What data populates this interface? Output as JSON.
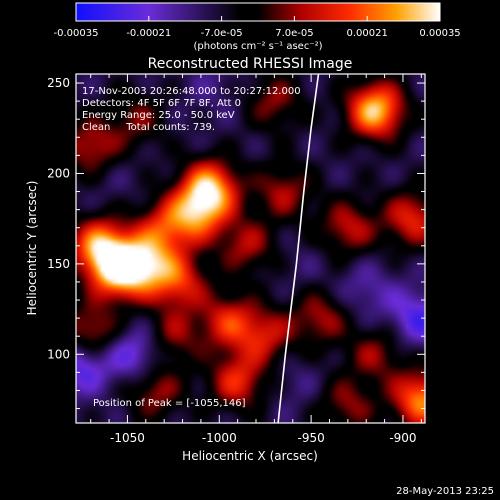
{
  "colorbar": {
    "tick_labels": [
      "-0.00035",
      "-0.00021",
      "-7.0e-05",
      "7.0e-05",
      "0.00021",
      "0.00035"
    ],
    "tick_values": [
      -0.00035,
      -0.00021,
      -7e-05,
      7e-05,
      0.00021,
      0.00035
    ],
    "units_label": "(photons cm⁻² s⁻¹ asec⁻²)",
    "range": [
      -0.00035,
      0.00035
    ]
  },
  "annotation": {
    "time_range": "17-Nov-2003 20:26:48.000 to 20:27:12.000",
    "detectors": "Detectors: 4F 5F 6F 7F 8F, Att 0",
    "energy_range": "Energy Range: 25.0 - 50.0 keV",
    "method_counts": "Clean     Total counts: 739.",
    "peak_position": "Position of Peak = [-1055,146]"
  },
  "footer": {
    "timestamp": "28-May-2013 23:25"
  },
  "chart_data": {
    "type": "heatmap",
    "title": "Reconstructed RHESSI Image",
    "xlabel": "Heliocentric X (arcsec)",
    "ylabel": "Heliocentric Y (arcsec)",
    "xlim": [
      -1078,
      -888
    ],
    "ylim": [
      62,
      255
    ],
    "x_ticks": [
      -1050,
      -1000,
      -950,
      -900
    ],
    "x_tick_labels": [
      "-1050",
      "-1000",
      "-950",
      "-900"
    ],
    "y_ticks": [
      100,
      150,
      200,
      250
    ],
    "y_tick_labels": [
      "100",
      "150",
      "200",
      "250"
    ],
    "grid": false,
    "colormap": "blue-purple-black-red-yellow-white",
    "peak": {
      "x": -1055,
      "y": 146
    },
    "limb_curve": {
      "x": [
        -968,
        -964,
        -958,
        -954,
        -950,
        -946
      ],
      "y": [
        62,
        100,
        150,
        190,
        225,
        255
      ]
    },
    "blobs": [
      {
        "x": -1055,
        "y": 146,
        "v": 0.00032
      },
      {
        "x": -1065,
        "y": 160,
        "v": 0.00028
      },
      {
        "x": -1040,
        "y": 150,
        "v": 0.00024
      },
      {
        "x": -1005,
        "y": 192,
        "v": 0.0003
      },
      {
        "x": -1012,
        "y": 178,
        "v": 0.00022
      },
      {
        "x": -1030,
        "y": 170,
        "v": 0.00016
      },
      {
        "x": -1022,
        "y": 140,
        "v": 0.00018
      },
      {
        "x": -995,
        "y": 118,
        "v": 0.00017
      },
      {
        "x": -985,
        "y": 160,
        "v": 0.00012
      },
      {
        "x": -965,
        "y": 190,
        "v": 0.00012
      },
      {
        "x": -1070,
        "y": 215,
        "v": 0.00014
      },
      {
        "x": -1045,
        "y": 230,
        "v": 8e-05
      },
      {
        "x": -1020,
        "y": 230,
        "v": -6e-05
      },
      {
        "x": -915,
        "y": 235,
        "v": 0.00034
      },
      {
        "x": -930,
        "y": 170,
        "v": 0.00014
      },
      {
        "x": -895,
        "y": 175,
        "v": 0.00018
      },
      {
        "x": -945,
        "y": 120,
        "v": 0.00012
      },
      {
        "x": -920,
        "y": 135,
        "v": -0.00014
      },
      {
        "x": -915,
        "y": 100,
        "v": 0.0001
      },
      {
        "x": -892,
        "y": 120,
        "v": -0.00022
      },
      {
        "x": -890,
        "y": 75,
        "v": 0.00028
      },
      {
        "x": -930,
        "y": 72,
        "v": 0.0001
      },
      {
        "x": -1070,
        "y": 112,
        "v": 0.00016
      },
      {
        "x": -1045,
        "y": 100,
        "v": -0.00022
      },
      {
        "x": -1075,
        "y": 95,
        "v": -0.00024
      },
      {
        "x": -1025,
        "y": 110,
        "v": 0.0001
      },
      {
        "x": -1035,
        "y": 80,
        "v": 0.00012
      },
      {
        "x": -990,
        "y": 85,
        "v": 0.00018
      },
      {
        "x": -975,
        "y": 110,
        "v": 0.00014
      },
      {
        "x": -960,
        "y": 85,
        "v": -0.0001
      },
      {
        "x": -1058,
        "y": 195,
        "v": -8e-05
      },
      {
        "x": -955,
        "y": 150,
        "v": -8e-05
      },
      {
        "x": -1002,
        "y": 248,
        "v": -0.0001
      },
      {
        "x": -970,
        "y": 240,
        "v": 0.0001
      }
    ]
  }
}
